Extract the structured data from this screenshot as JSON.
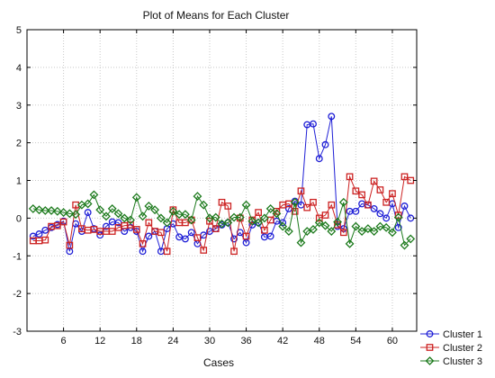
{
  "chart_data": {
    "type": "line",
    "title": "Plot of Means for Each Cluster",
    "xlabel": "Cases",
    "ylabel": "",
    "xlim": [
      0,
      64
    ],
    "ylim": [
      -3,
      5
    ],
    "x_ticks": [
      6,
      12,
      18,
      24,
      30,
      36,
      42,
      48,
      54,
      60
    ],
    "y_ticks": [
      -3,
      -2,
      -1,
      0,
      1,
      2,
      3,
      4,
      5
    ],
    "grid": true,
    "legend_position": "bottom-right-outside",
    "x": [
      1,
      2,
      3,
      4,
      5,
      6,
      7,
      8,
      9,
      10,
      11,
      12,
      13,
      14,
      15,
      16,
      17,
      18,
      19,
      20,
      21,
      22,
      23,
      24,
      25,
      26,
      27,
      28,
      29,
      30,
      31,
      32,
      33,
      34,
      35,
      36,
      37,
      38,
      39,
      40,
      41,
      42,
      43,
      44,
      45,
      46,
      47,
      48,
      49,
      50,
      51,
      52,
      53,
      54,
      55,
      56,
      57,
      58,
      59,
      60,
      61,
      62,
      63
    ],
    "series": [
      {
        "name": "Cluster  1",
        "color": "#1f1fd6",
        "marker": "circle",
        "values": [
          -0.48,
          -0.42,
          -0.32,
          -0.25,
          -0.17,
          -0.08,
          -0.88,
          -0.15,
          -0.35,
          0.15,
          -0.28,
          -0.45,
          -0.22,
          -0.1,
          -0.12,
          -0.35,
          -0.25,
          -0.35,
          -0.88,
          -0.48,
          -0.35,
          -0.88,
          -0.28,
          -0.15,
          -0.5,
          -0.55,
          -0.38,
          -0.68,
          -0.45,
          -0.35,
          -0.28,
          -0.18,
          -0.12,
          -0.55,
          -0.38,
          -0.65,
          -0.18,
          -0.12,
          -0.5,
          -0.48,
          -0.08,
          -0.12,
          0.25,
          0.45,
          0.35,
          2.48,
          2.5,
          1.58,
          1.95,
          2.7,
          -0.22,
          -0.28,
          0.18,
          0.18,
          0.38,
          0.35,
          0.25,
          0.12,
          0.0,
          0.38,
          -0.25,
          0.32,
          0.0
        ]
      },
      {
        "name": "Cluster  2",
        "color": "#cc2222",
        "marker": "square",
        "values": [
          -0.6,
          -0.6,
          -0.58,
          -0.22,
          -0.2,
          -0.1,
          -0.72,
          0.35,
          -0.28,
          -0.32,
          -0.3,
          -0.35,
          -0.35,
          -0.35,
          -0.25,
          -0.2,
          -0.18,
          -0.3,
          -0.68,
          -0.12,
          -0.35,
          -0.38,
          -0.88,
          0.22,
          -0.12,
          -0.12,
          -0.05,
          -0.52,
          -0.85,
          -0.08,
          -0.28,
          0.42,
          0.32,
          -0.88,
          0.0,
          -0.48,
          -0.05,
          0.15,
          -0.32,
          -0.05,
          0.18,
          0.35,
          0.38,
          0.18,
          0.72,
          0.28,
          0.42,
          0.0,
          0.08,
          0.35,
          -0.18,
          -0.38,
          1.1,
          0.72,
          0.62,
          0.35,
          0.98,
          0.75,
          0.42,
          0.65,
          0.08,
          1.1,
          1.0
        ]
      },
      {
        "name": "Cluster  3",
        "color": "#1c7a1c",
        "marker": "diamond",
        "values": [
          0.25,
          0.22,
          0.2,
          0.2,
          0.18,
          0.15,
          0.12,
          0.1,
          0.35,
          0.38,
          0.62,
          0.22,
          0.05,
          0.25,
          0.12,
          0.0,
          -0.05,
          0.55,
          0.05,
          0.32,
          0.22,
          0.0,
          -0.12,
          0.18,
          0.1,
          0.1,
          -0.05,
          0.58,
          0.35,
          0.0,
          0.02,
          -0.15,
          -0.12,
          0.02,
          0.02,
          0.35,
          -0.08,
          -0.12,
          0.0,
          0.25,
          0.12,
          -0.22,
          -0.35,
          0.42,
          -0.65,
          -0.35,
          -0.3,
          -0.12,
          -0.2,
          -0.35,
          -0.1,
          0.42,
          -0.68,
          -0.22,
          -0.35,
          -0.28,
          -0.35,
          -0.22,
          -0.25,
          -0.38,
          0.02,
          -0.72,
          -0.55
        ]
      }
    ]
  }
}
